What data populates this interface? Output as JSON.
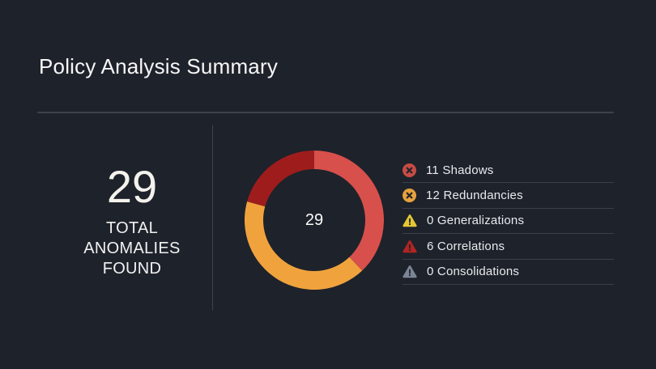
{
  "header": {
    "title": "Policy Analysis Summary"
  },
  "summary": {
    "value": "29",
    "label_lines": [
      "TOTAL",
      "ANOMALIES",
      "FOUND"
    ]
  },
  "chart_data": {
    "type": "pie",
    "donut": true,
    "title": "Policy Analysis Summary",
    "center_label": "29",
    "total": 29,
    "start_angle_deg": 0,
    "direction": "clockwise",
    "legend_position": "right",
    "series": [
      {
        "name": "Shadows",
        "value": 11,
        "slice_color": "#d8504b",
        "icon": "circle-x-icon",
        "icon_color": "#c84b44"
      },
      {
        "name": "Redundancies",
        "value": 12,
        "slice_color": "#f0a33d",
        "icon": "circle-x-icon",
        "icon_color": "#e7a23c"
      },
      {
        "name": "Generalizations",
        "value": 0,
        "slice_color": null,
        "icon": "warning-triangle-icon",
        "icon_color": "#e5c833"
      },
      {
        "name": "Correlations",
        "value": 6,
        "slice_color": "#9e1d1c",
        "icon": "warning-triangle-icon",
        "icon_color": "#b02522"
      },
      {
        "name": "Consolidations",
        "value": 0,
        "slice_color": null,
        "icon": "warning-triangle-icon",
        "icon_color": "#7c8595"
      }
    ]
  },
  "colors": {
    "background": "#1e222b",
    "divider": "#3d434d",
    "legend_divider": "#3a404b",
    "icon_glyph": "#22262e",
    "text": "#f2f2f2"
  }
}
